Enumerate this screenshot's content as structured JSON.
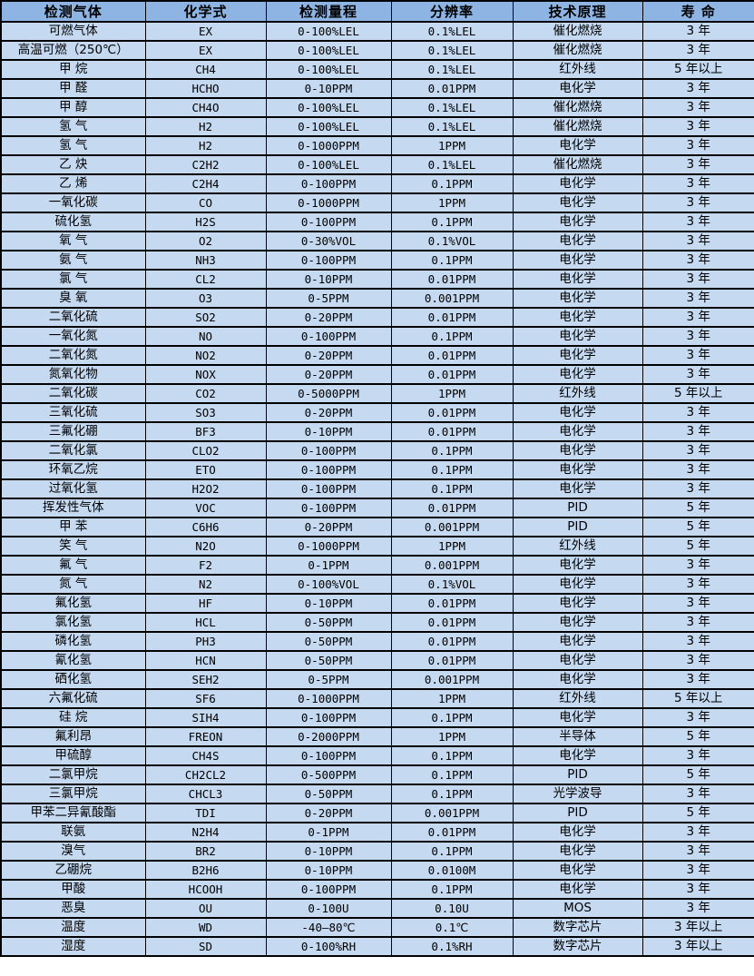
{
  "colors": {
    "header_bg": "#8db4e2",
    "row_bg": "#c5d9f1",
    "border": "#000000",
    "text": "#000000"
  },
  "table": {
    "columns": [
      "检测气体",
      "化学式",
      "检测量程",
      "分辨率",
      "技术原理",
      "寿 命"
    ],
    "column_keys": [
      "gas-name",
      "chemical-formula",
      "detection-range",
      "resolution",
      "technology",
      "lifespan"
    ],
    "rows": [
      [
        "可燃气体",
        "EX",
        "0-100%LEL",
        "0.1%LEL",
        "催化燃烧",
        "3 年"
      ],
      [
        "高温可燃（250℃）",
        "EX",
        "0-100%LEL",
        "0.1%LEL",
        "催化燃烧",
        "3 年"
      ],
      [
        "甲 烷",
        "CH4",
        "0-100%LEL",
        "0.1%LEL",
        "红外线",
        "5 年以上"
      ],
      [
        "甲 醛",
        "HCHO",
        "0-10PPM",
        "0.01PPM",
        "电化学",
        "3 年"
      ],
      [
        "甲 醇",
        "CH4O",
        "0-100%LEL",
        "0.1%LEL",
        "催化燃烧",
        "3 年"
      ],
      [
        "氢 气",
        "H2",
        "0-100%LEL",
        "0.1%LEL",
        "催化燃烧",
        "3 年"
      ],
      [
        "氢 气",
        "H2",
        "0-1000PPM",
        "1PPM",
        "电化学",
        "3 年"
      ],
      [
        "乙 炔",
        "C2H2",
        "0-100%LEL",
        "0.1%LEL",
        "催化燃烧",
        "3 年"
      ],
      [
        "乙 烯",
        "C2H4",
        "0-100PPM",
        "0.1PPM",
        "电化学",
        "3 年"
      ],
      [
        "一氧化碳",
        "CO",
        "0-1000PPM",
        "1PPM",
        "电化学",
        "3 年"
      ],
      [
        "硫化氢",
        "H2S",
        "0-100PPM",
        "0.1PPM",
        "电化学",
        "3 年"
      ],
      [
        "氧 气",
        "O2",
        "0-30%VOL",
        "0.1%VOL",
        "电化学",
        "3 年"
      ],
      [
        "氨 气",
        "NH3",
        "0-100PPM",
        "0.1PPM",
        "电化学",
        "3 年"
      ],
      [
        "氯 气",
        "CL2",
        "0-10PPM",
        "0.01PPM",
        "电化学",
        "3 年"
      ],
      [
        "臭 氧",
        "O3",
        "0-5PPM",
        "0.001PPM",
        "电化学",
        "3 年"
      ],
      [
        "二氧化硫",
        "SO2",
        "0-20PPM",
        "0.01PPM",
        "电化学",
        "3 年"
      ],
      [
        "一氧化氮",
        "NO",
        "0-100PPM",
        "0.1PPM",
        "电化学",
        "3 年"
      ],
      [
        "二氧化氮",
        "NO2",
        "0-20PPM",
        "0.01PPM",
        "电化学",
        "3 年"
      ],
      [
        "氮氧化物",
        "NOX",
        "0-20PPM",
        "0.01PPM",
        "电化学",
        "3 年"
      ],
      [
        "二氧化碳",
        "CO2",
        "0-5000PPM",
        "1PPM",
        "红外线",
        "5 年以上"
      ],
      [
        "三氧化硫",
        "SO3",
        "0-20PPM",
        "0.01PPM",
        "电化学",
        "3 年"
      ],
      [
        "三氟化硼",
        "BF3",
        "0-10PPM",
        "0.01PPM",
        "电化学",
        "3 年"
      ],
      [
        "二氧化氯",
        "CLO2",
        "0-100PPM",
        "0.1PPM",
        "电化学",
        "3 年"
      ],
      [
        "环氧乙烷",
        "ETO",
        "0-100PPM",
        "0.1PPM",
        "电化学",
        "3 年"
      ],
      [
        "过氧化氢",
        "H2O2",
        "0-100PPM",
        "0.1PPM",
        "电化学",
        "3 年"
      ],
      [
        "挥发性气体",
        "VOC",
        "0-100PPM",
        "0.01PPM",
        "PID",
        "5 年"
      ],
      [
        "甲 苯",
        "C6H6",
        "0-20PPM",
        "0.001PPM",
        "PID",
        "5 年"
      ],
      [
        "笑 气",
        "N2O",
        "0-1000PPM",
        "1PPM",
        "红外线",
        "5 年"
      ],
      [
        "氟 气",
        "F2",
        "0-1PPM",
        "0.001PPM",
        "电化学",
        "3 年"
      ],
      [
        "氮 气",
        "N2",
        "0-100%VOL",
        "0.1%VOL",
        "电化学",
        "3 年"
      ],
      [
        "氟化氢",
        "HF",
        "0-10PPM",
        "0.01PPM",
        "电化学",
        "3 年"
      ],
      [
        "氯化氢",
        "HCL",
        "0-50PPM",
        "0.01PPM",
        "电化学",
        "3 年"
      ],
      [
        "磷化氢",
        "PH3",
        "0-50PPM",
        "0.01PPM",
        "电化学",
        "3 年"
      ],
      [
        "氰化氢",
        "HCN",
        "0-50PPM",
        "0.01PPM",
        "电化学",
        "3 年"
      ],
      [
        "硒化氢",
        "SEH2",
        "0-5PPM",
        "0.001PPM",
        "电化学",
        "3 年"
      ],
      [
        "六氟化硫",
        "SF6",
        "0-1000PPM",
        "1PPM",
        "红外线",
        "5 年以上"
      ],
      [
        "硅 烷",
        "SIH4",
        "0-100PPM",
        "0.1PPM",
        "电化学",
        "3 年"
      ],
      [
        "氟利昂",
        "FREON",
        "0-2000PPM",
        "1PPM",
        "半导体",
        "5 年"
      ],
      [
        "甲硫醇",
        "CH4S",
        "0-100PPM",
        "0.1PPM",
        "电化学",
        "3 年"
      ],
      [
        "二氯甲烷",
        "CH2CL2",
        "0-500PPM",
        "0.1PPM",
        "PID",
        "5 年"
      ],
      [
        "三氯甲烷",
        "CHCL3",
        "0-50PPM",
        "0.1PPM",
        "光学波导",
        "3 年"
      ],
      [
        "甲苯二异氰酸酯",
        "TDI",
        "0-20PPM",
        "0.001PPM",
        "PID",
        "5 年"
      ],
      [
        "联氨",
        "N2H4",
        "0-1PPM",
        "0.01PPM",
        "电化学",
        "3 年"
      ],
      [
        "溴气",
        "BR2",
        "0-10PPM",
        "0.1PPM",
        "电化学",
        "3 年"
      ],
      [
        "乙硼烷",
        "B2H6",
        "0-10PPM",
        "0.0100M",
        "电化学",
        "3 年"
      ],
      [
        "甲酸",
        "HCOOH",
        "0-100PPM",
        "0.1PPM",
        "电化学",
        "3 年"
      ],
      [
        "恶臭",
        "OU",
        "0-100U",
        "0.10U",
        "MOS",
        "3 年"
      ],
      [
        "温度",
        "WD",
        "-40—80℃",
        "0.1℃",
        "数字芯片",
        "3 年以上"
      ],
      [
        "湿度",
        "SD",
        "0-100%RH",
        "0.1%RH",
        "数字芯片",
        "3 年以上"
      ]
    ]
  }
}
